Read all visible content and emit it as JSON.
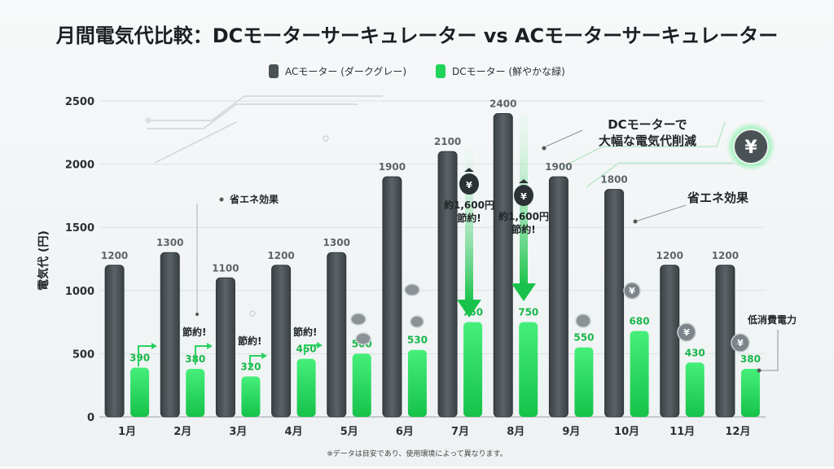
{
  "chart_data": {
    "type": "bar",
    "title": "月間電気代比較：DCモーターサーキュレーター vs ACモーターサーキュレーター",
    "ylabel": "電気代 (円)",
    "xlabel": "",
    "ylim": [
      0,
      2500
    ],
    "yticks": [
      "0",
      "500",
      "1000",
      "1500",
      "2000",
      "2500"
    ],
    "grid": true,
    "legend_position": "top-center",
    "categories": [
      "1月",
      "2月",
      "3月",
      "4月",
      "5月",
      "6月",
      "7月",
      "8月",
      "9月",
      "10月",
      "11月",
      "12月"
    ],
    "series": [
      {
        "name": "ACモーター (ダークグレー)",
        "color": "#4a5256",
        "values": [
          1200,
          1300,
          1100,
          1200,
          1300,
          1900,
          2100,
          2400,
          1900,
          1800,
          1200,
          1200
        ]
      },
      {
        "name": "DCモーター (鮮やかな緑)",
        "color": "#22d35a",
        "values": [
          390,
          380,
          320,
          460,
          500,
          530,
          750,
          750,
          550,
          680,
          430,
          380
        ]
      }
    ],
    "annotations": {
      "eco_small": "省エネ効果",
      "eco_big": "省エネ効果",
      "savings": "節約!",
      "savings_1600": "約1,600円",
      "savings_1600_b": "節約!",
      "dc_reduction_1": "DCモーターで",
      "dc_reduction_2": "大幅な電気代削減",
      "low_power": "低消費電力",
      "yen_symbol": "¥"
    }
  },
  "footnote": "※データは目安であり、使用環境によって異なります。"
}
